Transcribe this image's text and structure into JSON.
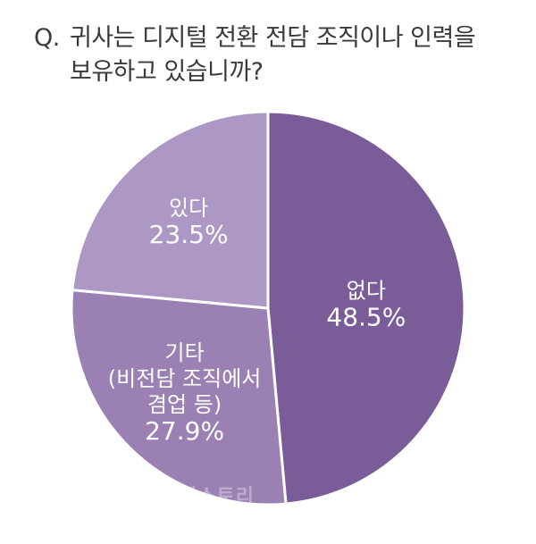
{
  "title": {
    "prefix": "Q.",
    "line1": "귀사는 디지털 전환 전담 조직이나 인력을",
    "line2": "보유하고 있습니까?"
  },
  "chart_data": {
    "type": "pie",
    "title": "Q. 귀사는 디지털 전환 전담 조직이나 인력을 보유하고 있습니까?",
    "slices": [
      {
        "label": "없다",
        "value": 48.5,
        "display": "48.5%",
        "color": "#7a5c99"
      },
      {
        "label": "기타\n(비전담 조직에서\n겸업 등)",
        "value": 27.9,
        "display": "27.9%",
        "color": "#9b80b4"
      },
      {
        "label": "있다",
        "value": 23.5,
        "display": "23.5%",
        "color": "#ad98c5"
      }
    ],
    "start_angle_deg": 0,
    "direction": "clockwise",
    "legend": "none"
  },
  "watermark": "더스토리"
}
